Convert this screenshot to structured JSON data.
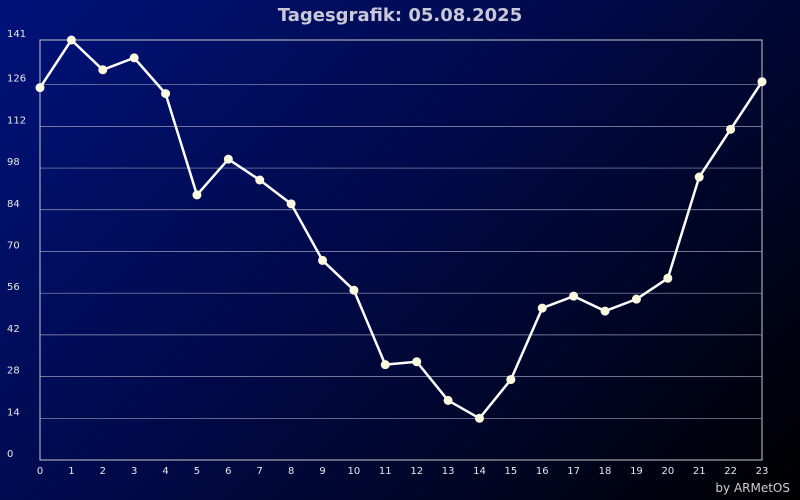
{
  "chart_data": {
    "type": "line",
    "title": "Tagesgrafik: 05.08.2025",
    "x": [
      0,
      1,
      2,
      3,
      4,
      5,
      6,
      7,
      8,
      9,
      10,
      11,
      12,
      13,
      14,
      15,
      16,
      17,
      18,
      19,
      20,
      21,
      22,
      23
    ],
    "series": [
      {
        "values": [
          125,
          141,
          131,
          135,
          123,
          89,
          101,
          94,
          86,
          67,
          57,
          32,
          33,
          20,
          14,
          27,
          51,
          55,
          50,
          54,
          61,
          95,
          111,
          127
        ]
      }
    ],
    "xlim": [
      0,
      23
    ],
    "ylim": [
      0,
      141
    ],
    "yticks": [
      0,
      14,
      28,
      42,
      56,
      70,
      84,
      98,
      112,
      126,
      141
    ],
    "xticks": [
      0,
      1,
      2,
      3,
      4,
      5,
      6,
      7,
      8,
      9,
      10,
      11,
      12,
      13,
      14,
      15,
      16,
      17,
      18,
      19,
      20,
      21,
      22,
      23
    ],
    "grid": true,
    "line_color": "#ffffff",
    "marker_color": "#fffbe0",
    "background_colors": [
      "#00127a",
      "#000000"
    ]
  },
  "footer": "by ARMetOS"
}
